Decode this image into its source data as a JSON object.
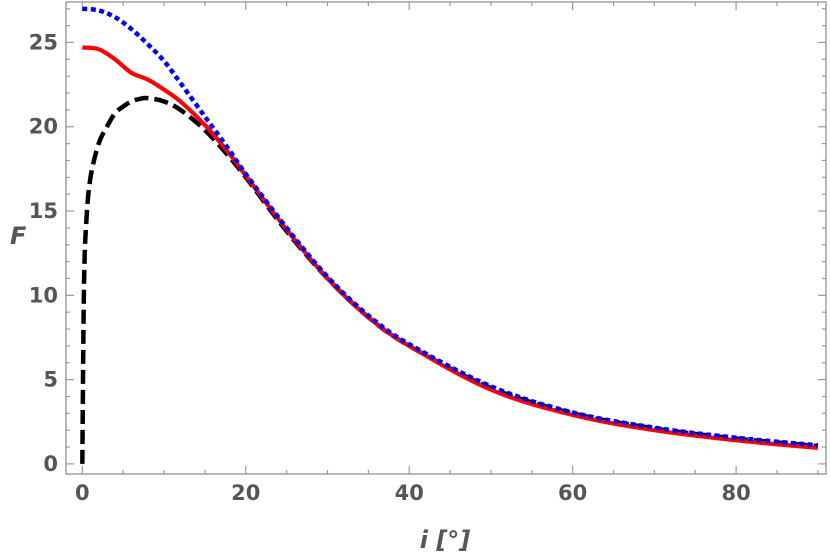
{
  "chart_data": {
    "type": "line",
    "title": "",
    "xlabel": "i [°]",
    "ylabel": "F",
    "xlim": [
      -2,
      91
    ],
    "ylim": [
      -0.6,
      27.4
    ],
    "xticks": [
      0,
      20,
      40,
      60,
      80
    ],
    "yticks": [
      0,
      5,
      10,
      15,
      20,
      25
    ],
    "xtick_labels": [
      "0",
      "20",
      "40",
      "60",
      "80"
    ],
    "ytick_labels": [
      "0",
      "5",
      "10",
      "15",
      "20",
      "25"
    ],
    "grid": false,
    "series": [
      {
        "color": "#000000",
        "style": "dashed",
        "x": [
          0,
          0.2,
          0.5,
          1,
          2,
          3,
          4,
          5,
          6,
          7,
          8,
          10,
          12,
          15,
          18,
          20,
          25,
          30,
          35,
          40,
          50,
          60,
          70,
          80,
          90
        ],
        "y": [
          0,
          10.5,
          14.5,
          17.0,
          19.0,
          20.0,
          20.8,
          21.2,
          21.5,
          21.65,
          21.7,
          21.5,
          21.0,
          19.8,
          18.2,
          17.0,
          13.8,
          11.0,
          8.7,
          7.0,
          4.5,
          3.0,
          2.1,
          1.5,
          1.05
        ]
      },
      {
        "color": "#ff0000",
        "style": "solid",
        "x": [
          0,
          2,
          4,
          6,
          8,
          10,
          12,
          15,
          18,
          20,
          25,
          30,
          35,
          40,
          50,
          60,
          70,
          80,
          90
        ],
        "y": [
          24.7,
          24.6,
          24.0,
          23.2,
          22.8,
          22.2,
          21.5,
          20.1,
          18.4,
          17.1,
          13.9,
          11.0,
          8.7,
          7.0,
          4.4,
          2.9,
          2.0,
          1.4,
          0.95
        ]
      },
      {
        "color": "#0000ff",
        "style": "dotted",
        "x": [
          0,
          2,
          4,
          6,
          8,
          10,
          12,
          15,
          18,
          20,
          25,
          30,
          35,
          40,
          50,
          60,
          70,
          80,
          90
        ],
        "y": [
          27.0,
          26.9,
          26.5,
          25.8,
          24.9,
          23.9,
          22.6,
          20.6,
          18.6,
          17.2,
          14.0,
          11.1,
          8.8,
          7.1,
          4.6,
          3.05,
          2.15,
          1.55,
          1.1
        ]
      }
    ]
  }
}
